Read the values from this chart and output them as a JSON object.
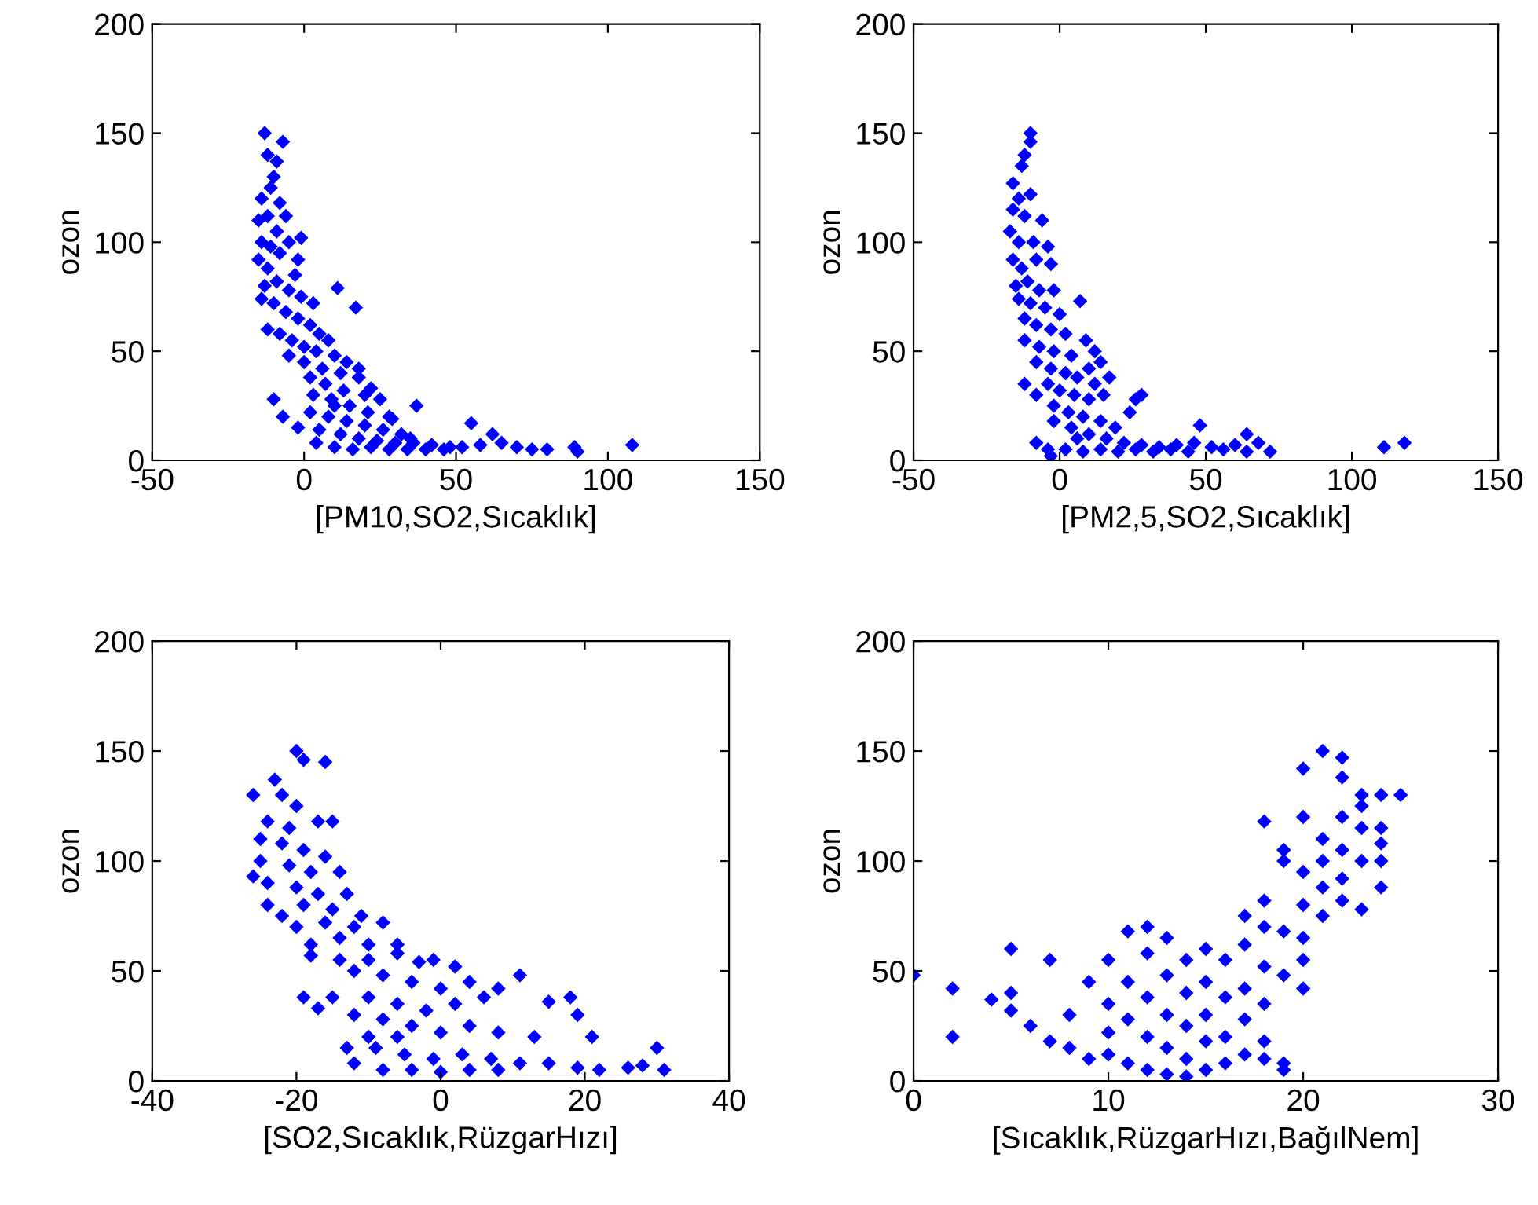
{
  "chart_data": [
    {
      "type": "scatter",
      "xlabel": "[PM10,SO2,Sıcaklık]",
      "ylabel": "ozon",
      "xlim": [
        -50,
        150
      ],
      "xticks": [
        -50,
        0,
        50,
        100,
        150
      ],
      "ylim": [
        0,
        200
      ],
      "yticks": [
        0,
        50,
        100,
        150,
        200
      ],
      "marker": "diamond",
      "grid": false,
      "series": [
        {
          "color": "#0000ff",
          "x": [
            -13,
            -7,
            -12,
            -9,
            -10,
            -14,
            -11,
            -8,
            -15,
            -12,
            -6,
            -9,
            -14,
            -11,
            -5,
            -1,
            -15,
            -12,
            -8,
            -2,
            -3,
            -13,
            -9,
            -5,
            11,
            -1,
            3,
            -14,
            -10,
            -6,
            -2,
            2,
            5,
            8,
            -12,
            -8,
            -4,
            0,
            4,
            10,
            14,
            18,
            -5,
            0,
            6,
            12,
            18,
            22,
            2,
            7,
            13,
            20,
            25,
            3,
            9,
            15,
            21,
            28,
            -10,
            2,
            8,
            14,
            20,
            26,
            32,
            -2,
            5,
            12,
            18,
            24,
            30,
            36,
            42,
            48,
            4,
            10,
            16,
            22,
            28,
            34,
            40,
            46,
            52,
            58,
            65,
            70,
            75,
            80,
            89,
            90,
            108,
            -7,
            37,
            29,
            55,
            62,
            17,
            10,
            35
          ],
          "values": [
            150,
            146,
            140,
            137,
            130,
            120,
            125,
            118,
            110,
            112,
            112,
            105,
            100,
            98,
            100,
            102,
            92,
            88,
            95,
            92,
            85,
            80,
            82,
            78,
            79,
            75,
            72,
            74,
            72,
            68,
            65,
            62,
            58,
            55,
            60,
            58,
            55,
            52,
            50,
            48,
            45,
            42,
            48,
            45,
            42,
            40,
            38,
            33,
            38,
            35,
            32,
            30,
            28,
            30,
            28,
            25,
            22,
            20,
            28,
            22,
            20,
            18,
            16,
            14,
            12,
            15,
            14,
            12,
            10,
            9,
            8,
            8,
            7,
            6,
            8,
            6,
            5,
            6,
            5,
            5,
            5,
            5,
            6,
            7,
            8,
            6,
            5,
            5,
            6,
            4,
            7,
            20,
            25,
            19,
            17,
            12,
            70,
            25,
            10
          ]
        }
      ]
    },
    {
      "type": "scatter",
      "xlabel": "[PM2,5,SO2,Sıcaklık]",
      "ylabel": "ozon",
      "xlim": [
        -50,
        150
      ],
      "xticks": [
        -50,
        0,
        50,
        100,
        150
      ],
      "ylim": [
        0,
        200
      ],
      "yticks": [
        0,
        50,
        100,
        150,
        200
      ],
      "marker": "diamond",
      "grid": false,
      "series": [
        {
          "color": "#0000ff",
          "x": [
            -10,
            -10,
            -12,
            -13,
            -16,
            -14,
            -10,
            -16,
            -12,
            -6,
            -17,
            -14,
            -9,
            -4,
            -16,
            -13,
            -8,
            -3,
            -15,
            -11,
            -7,
            -2,
            -14,
            -10,
            -5,
            7,
            0,
            -12,
            -8,
            -3,
            2,
            -12,
            -7,
            -2,
            4,
            9,
            12,
            14,
            -8,
            -3,
            2,
            6,
            10,
            17,
            -4,
            -12,
            0,
            5,
            10,
            15,
            -8,
            -2,
            3,
            8,
            14,
            19,
            26,
            28,
            24,
            -2,
            4,
            10,
            16,
            22,
            28,
            34,
            40,
            46,
            52,
            56,
            60,
            64,
            -8,
            -4,
            2,
            8,
            14,
            20,
            26,
            32,
            38,
            44,
            48,
            64,
            68,
            72,
            111,
            118,
            -3,
            6,
            12
          ],
          "values": [
            150,
            146,
            140,
            135,
            127,
            120,
            122,
            115,
            112,
            110,
            105,
            100,
            100,
            98,
            92,
            88,
            92,
            90,
            80,
            82,
            78,
            78,
            74,
            72,
            70,
            73,
            67,
            65,
            62,
            60,
            58,
            55,
            52,
            50,
            48,
            55,
            50,
            45,
            45,
            42,
            40,
            38,
            42,
            38,
            35,
            35,
            32,
            30,
            28,
            30,
            30,
            25,
            22,
            20,
            18,
            15,
            28,
            30,
            22,
            18,
            15,
            12,
            10,
            8,
            7,
            6,
            7,
            8,
            6,
            5,
            7,
            4,
            8,
            5,
            5,
            4,
            5,
            4,
            5,
            4,
            5,
            4,
            16,
            12,
            8,
            4,
            6,
            8,
            2,
            10,
            35
          ]
        }
      ]
    },
    {
      "type": "scatter",
      "xlabel": "[SO2,Sıcaklık,RüzgarHızı]",
      "ylabel": "ozon",
      "xlim": [
        -40,
        40
      ],
      "xticks": [
        -40,
        -20,
        0,
        20,
        40
      ],
      "ylim": [
        0,
        200
      ],
      "yticks": [
        0,
        50,
        100,
        150,
        200
      ],
      "marker": "diamond",
      "grid": false,
      "series": [
        {
          "color": "#0000ff",
          "x": [
            -20,
            -19,
            -16,
            -23,
            -26,
            -22,
            -20,
            -24,
            -21,
            -17,
            -15,
            -25,
            -22,
            -19,
            -16,
            -25,
            -21,
            -18,
            -14,
            -26,
            -24,
            -20,
            -17,
            -13,
            -24,
            -22,
            -19,
            -15,
            -11,
            -20,
            -16,
            -12,
            -8,
            -18,
            -14,
            -10,
            -6,
            -18,
            -14,
            -10,
            -6,
            -3,
            -1,
            2,
            -12,
            -8,
            -4,
            0,
            4,
            8,
            11,
            -15,
            -10,
            -6,
            -2,
            2,
            6,
            15,
            18,
            -19,
            -17,
            -12,
            -8,
            -4,
            0,
            4,
            8,
            13,
            19,
            21,
            -13,
            -9,
            -5,
            -1,
            3,
            7,
            11,
            15,
            19,
            22,
            26,
            28,
            -12,
            -8,
            -4,
            0,
            4,
            8,
            31,
            30,
            -6,
            -10
          ],
          "values": [
            150,
            146,
            145,
            137,
            130,
            130,
            125,
            118,
            115,
            118,
            118,
            110,
            108,
            105,
            102,
            100,
            98,
            95,
            95,
            93,
            90,
            88,
            85,
            85,
            80,
            75,
            80,
            78,
            75,
            70,
            72,
            70,
            72,
            62,
            65,
            62,
            62,
            57,
            55,
            55,
            58,
            54,
            55,
            52,
            50,
            48,
            45,
            42,
            45,
            42,
            48,
            38,
            38,
            35,
            32,
            35,
            38,
            36,
            38,
            38,
            33,
            30,
            28,
            25,
            22,
            25,
            22,
            20,
            30,
            20,
            15,
            15,
            12,
            10,
            12,
            10,
            8,
            8,
            6,
            5,
            6,
            7,
            8,
            5,
            5,
            4,
            5,
            5,
            5,
            15,
            20,
            20
          ]
        }
      ]
    },
    {
      "type": "scatter",
      "xlabel": "[Sıcaklık,RüzgarHızı,BağılNem]",
      "ylabel": "ozon",
      "xlim": [
        0,
        30
      ],
      "xticks": [
        0,
        10,
        20,
        30
      ],
      "ylim": [
        0,
        200
      ],
      "yticks": [
        0,
        50,
        100,
        150,
        200
      ],
      "marker": "diamond",
      "grid": false,
      "series": [
        {
          "color": "#0000ff",
          "x": [
            0,
            2,
            2,
            4,
            5,
            7,
            5,
            5,
            6,
            7,
            8,
            8,
            9,
            9,
            10,
            10,
            10,
            10,
            11,
            11,
            11,
            11,
            12,
            12,
            12,
            12,
            12,
            13,
            13,
            13,
            13,
            13,
            14,
            14,
            14,
            14,
            14,
            15,
            15,
            15,
            15,
            15,
            16,
            16,
            16,
            16,
            17,
            17,
            17,
            17,
            18,
            18,
            18,
            18,
            18,
            19,
            19,
            19,
            19,
            17,
            18,
            19,
            20,
            20,
            20,
            20,
            20,
            21,
            21,
            21,
            21,
            22,
            22,
            22,
            22,
            23,
            23,
            23,
            23,
            24,
            24,
            24,
            24,
            21,
            22,
            20,
            18,
            23,
            19,
            20,
            22,
            24,
            25
          ],
          "values": [
            48,
            42,
            20,
            37,
            60,
            55,
            40,
            32,
            25,
            18,
            30,
            15,
            45,
            10,
            55,
            35,
            22,
            12,
            68,
            45,
            28,
            8,
            70,
            58,
            38,
            20,
            5,
            65,
            48,
            30,
            15,
            3,
            55,
            40,
            25,
            10,
            2,
            60,
            45,
            30,
            18,
            5,
            55,
            38,
            20,
            8,
            62,
            42,
            28,
            12,
            70,
            52,
            35,
            18,
            10,
            68,
            48,
            8,
            5,
            75,
            82,
            100,
            95,
            80,
            65,
            55,
            42,
            110,
            100,
            88,
            75,
            120,
            105,
            92,
            82,
            130,
            115,
            100,
            125,
            130,
            115,
            100,
            88,
            150,
            147,
            142,
            118,
            78,
            105,
            120,
            138,
            108,
            130
          ]
        }
      ]
    }
  ]
}
